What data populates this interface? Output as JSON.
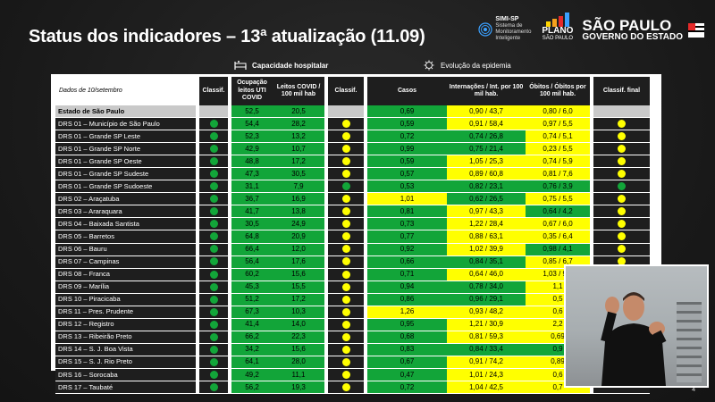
{
  "title": "Status dos indicadores – 13ª atualização (11.09)",
  "logos": {
    "simi_title": "SIMI-SP",
    "simi_sub": "Sistema de Monitoramento Inteligente",
    "plano_title": "PLANO",
    "plano_sub": "SÃO PAULO",
    "sp_title": "SÃO PAULO",
    "sp_sub": "GOVERNO DO ESTADO"
  },
  "sections": {
    "hospital": "Capacidade hospitalar",
    "epidemia": "Evolução da epidemia"
  },
  "headers": {
    "date": "Dados de 10/setembro",
    "classif1": "Classif.",
    "uti": "Ocupação leitos UTI COVID",
    "leitos": "Leitos COVID / 100 mil hab",
    "classif2": "Classif.",
    "casos": "Casos",
    "intern": "Internações / Int. por 100 mil hab.",
    "obitos": "Óbitos / Óbitos por 100 mil hab.",
    "final": "Classif. final"
  },
  "colors": {
    "green": "#12a539",
    "yellow": "#ffff00"
  },
  "rows": [
    {
      "name": "Estado de São Paulo",
      "c1": "",
      "uti": "52,5",
      "leitos": "20,5",
      "c2": "",
      "casos": "0,69",
      "casos_c": "g",
      "int": "0,90 / 43,7",
      "int_c": "y",
      "ob": "0,80 / 6,0",
      "ob_c": "y",
      "fin": ""
    },
    {
      "name": "DRS 01 – Município de São Paulo",
      "c1": "g",
      "uti": "54,4",
      "leitos": "28,2",
      "c2": "y",
      "casos": "0,59",
      "casos_c": "g",
      "int": "0,91 / 58,4",
      "int_c": "y",
      "ob": "0,97 / 5,5",
      "ob_c": "y",
      "fin": "y"
    },
    {
      "name": "DRS 01 – Grande SP Leste",
      "c1": "g",
      "uti": "52,3",
      "leitos": "13,2",
      "c2": "y",
      "casos": "0,72",
      "casos_c": "g",
      "int": "0,74 / 26,8",
      "int_c": "g",
      "ob": "0,74 / 5,1",
      "ob_c": "y",
      "fin": "y"
    },
    {
      "name": "DRS 01 – Grande SP Norte",
      "c1": "g",
      "uti": "42,9",
      "leitos": "10,7",
      "c2": "y",
      "casos": "0,99",
      "casos_c": "g",
      "int": "0,75 / 21,4",
      "int_c": "g",
      "ob": "0,23 / 5,5",
      "ob_c": "y",
      "fin": "y"
    },
    {
      "name": "DRS 01 – Grande SP Oeste",
      "c1": "g",
      "uti": "48,8",
      "leitos": "17,2",
      "c2": "y",
      "casos": "0,59",
      "casos_c": "g",
      "int": "1,05 / 25,3",
      "int_c": "y",
      "ob": "0,74 / 5,9",
      "ob_c": "y",
      "fin": "y"
    },
    {
      "name": "DRS 01 – Grande SP Sudeste",
      "c1": "g",
      "uti": "47,3",
      "leitos": "30,5",
      "c2": "y",
      "casos": "0,57",
      "casos_c": "g",
      "int": "0,89 / 60,8",
      "int_c": "y",
      "ob": "0,81 / 7,6",
      "ob_c": "y",
      "fin": "y"
    },
    {
      "name": "DRS 01 – Grande SP Sudoeste",
      "c1": "g",
      "uti": "31,1",
      "leitos": "7,9",
      "c2": "g",
      "casos": "0,53",
      "casos_c": "g",
      "int": "0,82 / 23,1",
      "int_c": "g",
      "ob": "0,76 / 3,9",
      "ob_c": "g",
      "fin": "g"
    },
    {
      "name": "DRS 02 – Araçatuba",
      "c1": "g",
      "uti": "36,7",
      "leitos": "16,9",
      "c2": "y",
      "casos": "1,01",
      "casos_c": "y",
      "int": "0,62 / 26,5",
      "int_c": "g",
      "ob": "0,75 / 5,5",
      "ob_c": "y",
      "fin": "y"
    },
    {
      "name": "DRS 03 – Araraquara",
      "c1": "g",
      "uti": "41,7",
      "leitos": "13,8",
      "c2": "y",
      "casos": "0,81",
      "casos_c": "g",
      "int": "0,97 / 43,3",
      "int_c": "y",
      "ob": "0,64 / 4,2",
      "ob_c": "g",
      "fin": "y"
    },
    {
      "name": "DRS 04 – Baixada Santista",
      "c1": "g",
      "uti": "30,5",
      "leitos": "24,9",
      "c2": "y",
      "casos": "0,73",
      "casos_c": "g",
      "int": "1,22 / 28,4",
      "int_c": "y",
      "ob": "0,67 / 6,0",
      "ob_c": "y",
      "fin": "y"
    },
    {
      "name": "DRS 05 – Barretos",
      "c1": "g",
      "uti": "64,8",
      "leitos": "20,9",
      "c2": "y",
      "casos": "0,77",
      "casos_c": "g",
      "int": "0,88 / 63,1",
      "int_c": "y",
      "ob": "0,35 / 6,4",
      "ob_c": "y",
      "fin": "y"
    },
    {
      "name": "DRS 06 – Bauru",
      "c1": "g",
      "uti": "66,4",
      "leitos": "12,0",
      "c2": "y",
      "casos": "0,92",
      "casos_c": "g",
      "int": "1,02 / 39,9",
      "int_c": "y",
      "ob": "0,98 / 4,1",
      "ob_c": "g",
      "fin": "y"
    },
    {
      "name": "DRS 07 – Campinas",
      "c1": "g",
      "uti": "56,4",
      "leitos": "17,6",
      "c2": "y",
      "casos": "0,66",
      "casos_c": "g",
      "int": "0,84 / 35,1",
      "int_c": "g",
      "ob": "0,85 / 6,7",
      "ob_c": "y",
      "fin": "y"
    },
    {
      "name": "DRS 08 – Franca",
      "c1": "g",
      "uti": "60,2",
      "leitos": "15,6",
      "c2": "y",
      "casos": "0,71",
      "casos_c": "g",
      "int": "0,64 / 46,0",
      "int_c": "y",
      "ob": "1,03 / 9,1",
      "ob_c": "y",
      "fin": "y"
    },
    {
      "name": "DRS 09 – Marília",
      "c1": "g",
      "uti": "45,3",
      "leitos": "15,5",
      "c2": "y",
      "casos": "0,94",
      "casos_c": "g",
      "int": "0,78 / 34,0",
      "int_c": "g",
      "ob": "1,1",
      "ob_c": "y",
      "fin": ""
    },
    {
      "name": "DRS 10 – Piracicaba",
      "c1": "g",
      "uti": "51,2",
      "leitos": "17,2",
      "c2": "y",
      "casos": "0,86",
      "casos_c": "g",
      "int": "0,96 / 29,1",
      "int_c": "g",
      "ob": "0,5",
      "ob_c": "y",
      "fin": ""
    },
    {
      "name": "DRS 11 – Pres. Prudente",
      "c1": "g",
      "uti": "67,3",
      "leitos": "10,3",
      "c2": "y",
      "casos": "1,26",
      "casos_c": "y",
      "int": "0,93 / 48,2",
      "int_c": "y",
      "ob": "0,6",
      "ob_c": "y",
      "fin": ""
    },
    {
      "name": "DRS 12 – Registro",
      "c1": "g",
      "uti": "41,4",
      "leitos": "14,0",
      "c2": "y",
      "casos": "0,95",
      "casos_c": "g",
      "int": "1,21 / 30,9",
      "int_c": "y",
      "ob": "2,2",
      "ob_c": "y",
      "fin": ""
    },
    {
      "name": "DRS 13 – Ribeirão Preto",
      "c1": "g",
      "uti": "66,2",
      "leitos": "22,3",
      "c2": "y",
      "casos": "0,68",
      "casos_c": "g",
      "int": "0,81 / 59,3",
      "int_c": "y",
      "ob": "0,69",
      "ob_c": "y",
      "fin": ""
    },
    {
      "name": "DRS 14 – S. J. Boa Vista",
      "c1": "g",
      "uti": "34,2",
      "leitos": "15,6",
      "c2": "y",
      "casos": "0,83",
      "casos_c": "g",
      "int": "0,84 / 33,4",
      "int_c": "g",
      "ob": "0,9",
      "ob_c": "g",
      "fin": ""
    },
    {
      "name": "DRS 15 – S. J. Rio Preto",
      "c1": "g",
      "uti": "64,1",
      "leitos": "28,0",
      "c2": "y",
      "casos": "0,67",
      "casos_c": "g",
      "int": "0,91 / 74,2",
      "int_c": "y",
      "ob": "0,89",
      "ob_c": "y",
      "fin": ""
    },
    {
      "name": "DRS 16 – Sorocaba",
      "c1": "g",
      "uti": "49,2",
      "leitos": "11,1",
      "c2": "y",
      "casos": "0,47",
      "casos_c": "g",
      "int": "1,01 / 24,3",
      "int_c": "y",
      "ob": "0,6",
      "ob_c": "y",
      "fin": ""
    },
    {
      "name": "DRS 17 – Taubaté",
      "c1": "g",
      "uti": "56,2",
      "leitos": "19,3",
      "c2": "y",
      "casos": "0,72",
      "casos_c": "g",
      "int": "1,04 / 42,5",
      "int_c": "y",
      "ob": "0,7",
      "ob_c": "y",
      "fin": ""
    }
  ],
  "page_number": "4"
}
